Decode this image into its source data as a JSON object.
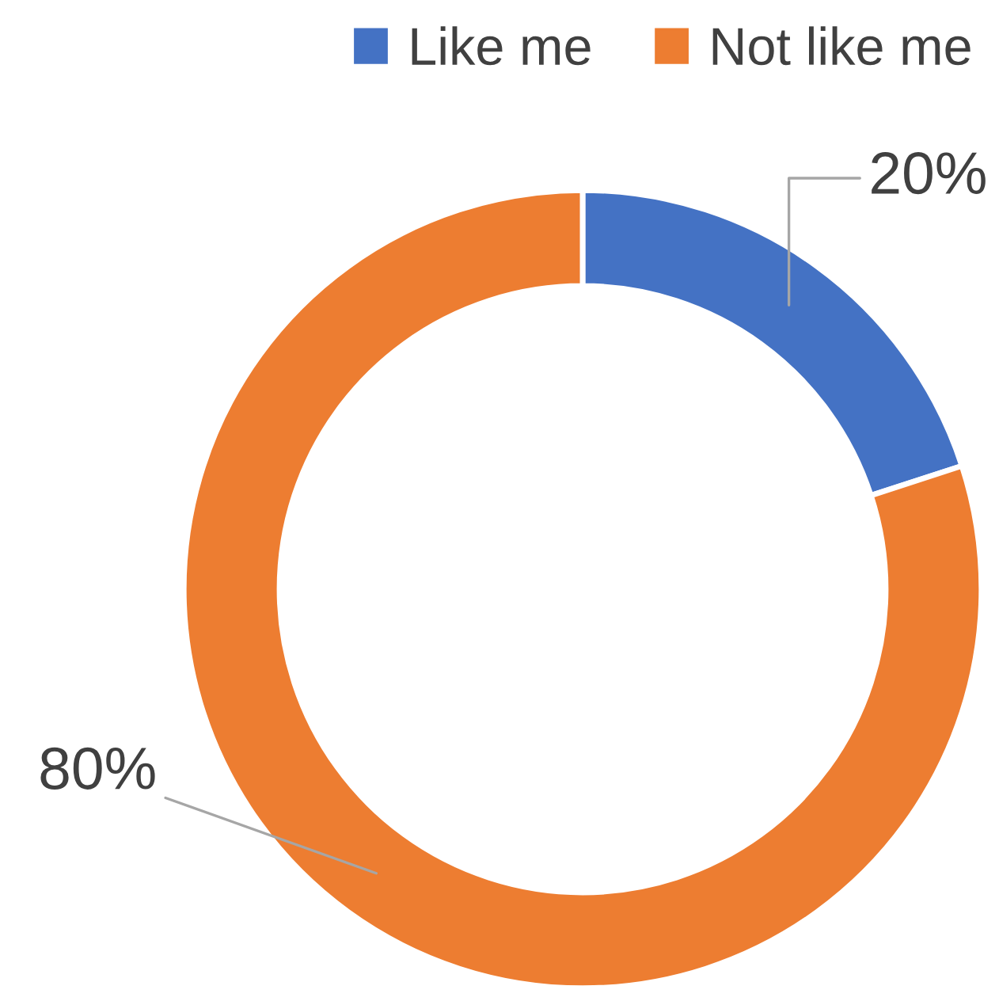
{
  "chart_data": {
    "type": "donut",
    "categories": [
      "Like me",
      "Not like me"
    ],
    "values": [
      20,
      80
    ],
    "colors": [
      "#4472c4",
      "#ed7d31"
    ],
    "value_labels": [
      "20%",
      "80%"
    ],
    "legend": "top right"
  }
}
